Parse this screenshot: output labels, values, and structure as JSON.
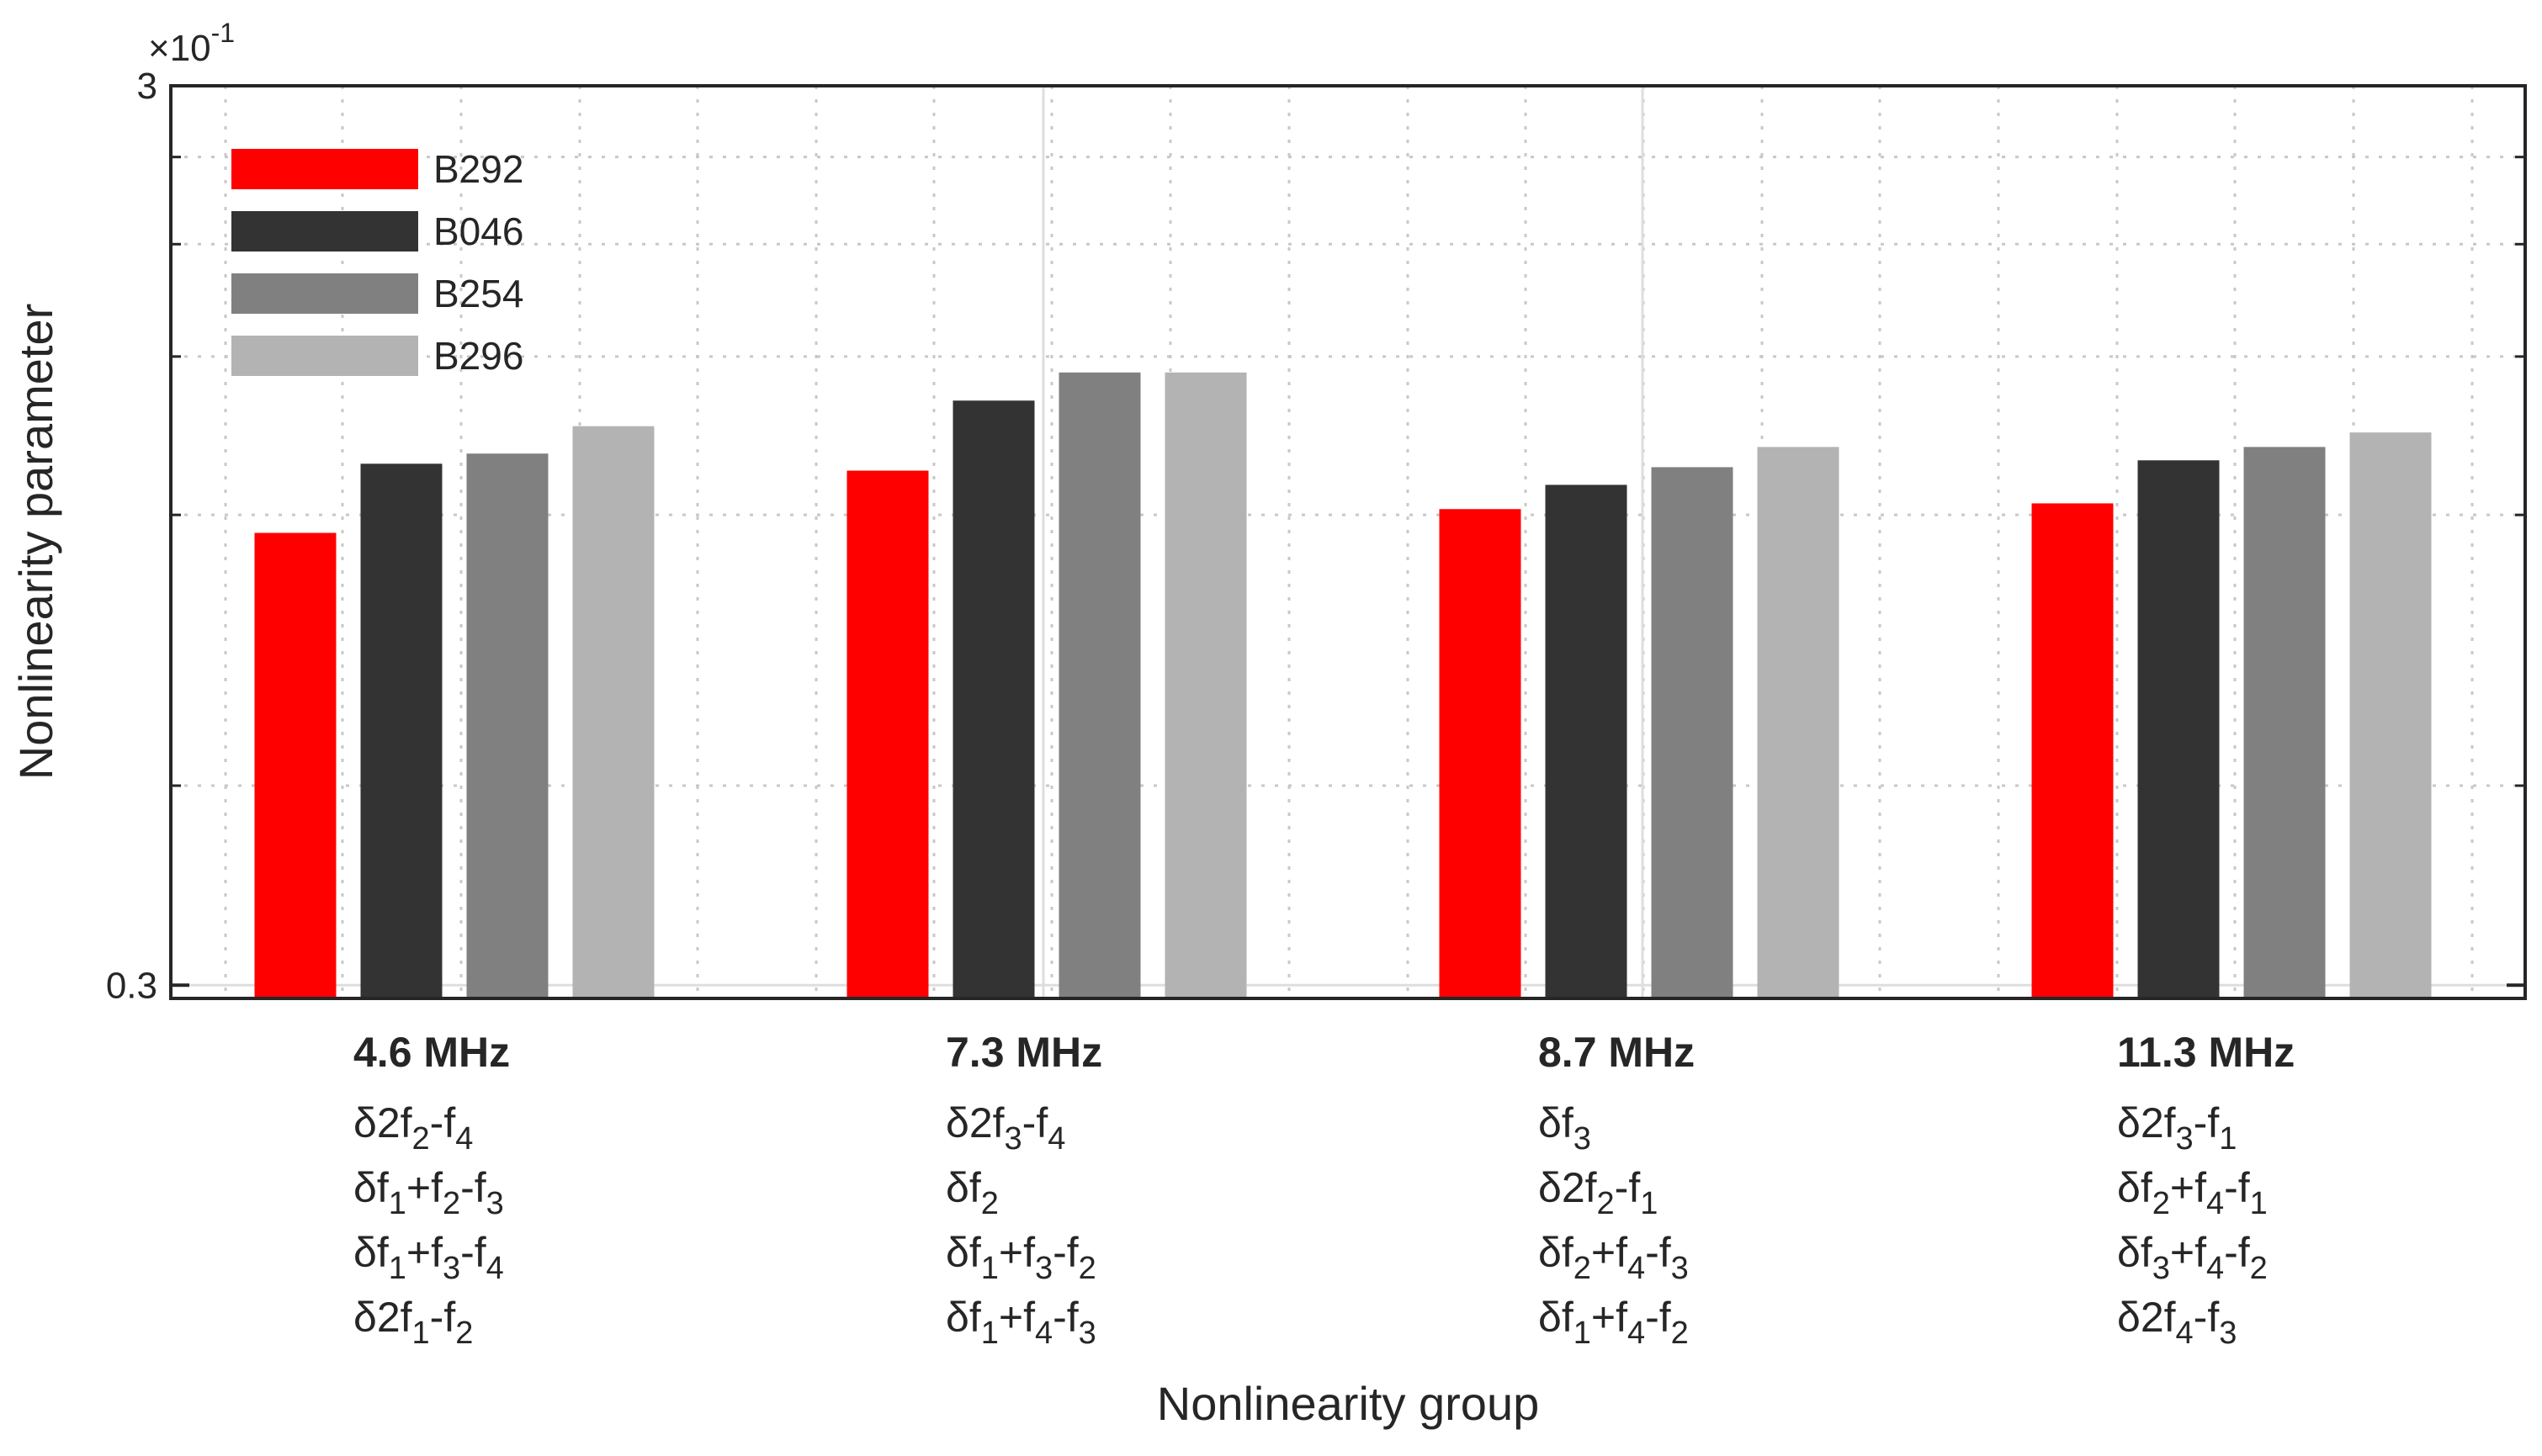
{
  "chart_data": {
    "type": "bar",
    "xlabel": "Nonlinearity group",
    "ylabel": "Nonlinearity parameter",
    "yscale": "log",
    "ylim": [
      0.029,
      0.3
    ],
    "exponent_label": {
      "base": "×10",
      "power": "-1"
    },
    "yticks": [
      {
        "value": 0.3,
        "label": "3"
      },
      {
        "value": 0.03,
        "label": "0.3"
      }
    ],
    "minor_grid": [
      0.05,
      0.1,
      0.15,
      0.2,
      0.25
    ],
    "grid": true,
    "legend_position": "top-left",
    "categories": [
      {
        "title": "4.6 MHz",
        "terms": [
          [
            [
              "δ2f",
              ""
            ],
            [
              "2",
              "sub"
            ],
            [
              "-f",
              ""
            ],
            [
              "4",
              "sub"
            ]
          ],
          [
            [
              "δf",
              ""
            ],
            [
              "1",
              "sub"
            ],
            [
              "+f",
              ""
            ],
            [
              "2",
              "sub"
            ],
            [
              "-f",
              ""
            ],
            [
              "3",
              "sub"
            ]
          ],
          [
            [
              "δf",
              ""
            ],
            [
              "1",
              "sub"
            ],
            [
              "+f",
              ""
            ],
            [
              "3",
              "sub"
            ],
            [
              "-f",
              ""
            ],
            [
              "4",
              "sub"
            ]
          ],
          [
            [
              "δ2f",
              ""
            ],
            [
              "1",
              "sub"
            ],
            [
              "-f",
              ""
            ],
            [
              "2",
              "sub"
            ]
          ]
        ]
      },
      {
        "title": "7.3 MHz",
        "terms": [
          [
            [
              "δ2f",
              ""
            ],
            [
              "3",
              "sub"
            ],
            [
              "-f",
              ""
            ],
            [
              "4",
              "sub"
            ]
          ],
          [
            [
              "δf",
              ""
            ],
            [
              "2",
              "sub"
            ]
          ],
          [
            [
              "δf",
              ""
            ],
            [
              "1",
              "sub"
            ],
            [
              "+f",
              ""
            ],
            [
              "3",
              "sub"
            ],
            [
              "-f",
              ""
            ],
            [
              "2",
              "sub"
            ]
          ],
          [
            [
              "δf",
              ""
            ],
            [
              "1",
              "sub"
            ],
            [
              "+f",
              ""
            ],
            [
              "4",
              "sub"
            ],
            [
              "-f",
              ""
            ],
            [
              "3",
              "sub"
            ]
          ]
        ]
      },
      {
        "title": "8.7 MHz",
        "terms": [
          [
            [
              "δf",
              ""
            ],
            [
              "3",
              "sub"
            ]
          ],
          [
            [
              "δ2f",
              ""
            ],
            [
              "2",
              "sub"
            ],
            [
              "-f",
              ""
            ],
            [
              "1",
              "sub"
            ]
          ],
          [
            [
              "δf",
              ""
            ],
            [
              "2",
              "sub"
            ],
            [
              "+f",
              ""
            ],
            [
              "4",
              "sub"
            ],
            [
              "-f",
              ""
            ],
            [
              "3",
              "sub"
            ]
          ],
          [
            [
              "δf",
              ""
            ],
            [
              "1",
              "sub"
            ],
            [
              "+f",
              ""
            ],
            [
              "4",
              "sub"
            ],
            [
              "-f",
              ""
            ],
            [
              "2",
              "sub"
            ]
          ]
        ]
      },
      {
        "title": "11.3 MHz",
        "terms": [
          [
            [
              "δ2f",
              ""
            ],
            [
              "3",
              "sub"
            ],
            [
              "-f",
              ""
            ],
            [
              "1",
              "sub"
            ]
          ],
          [
            [
              "δf",
              ""
            ],
            [
              "2",
              "sub"
            ],
            [
              "+f",
              ""
            ],
            [
              "4",
              "sub"
            ],
            [
              "-f",
              ""
            ],
            [
              "1",
              "sub"
            ]
          ],
          [
            [
              "δf",
              ""
            ],
            [
              "3",
              "sub"
            ],
            [
              "+f",
              ""
            ],
            [
              "4",
              "sub"
            ],
            [
              "-f",
              ""
            ],
            [
              "2",
              "sub"
            ]
          ],
          [
            [
              "δ2f",
              ""
            ],
            [
              "4",
              "sub"
            ],
            [
              "-f",
              ""
            ],
            [
              "3",
              "sub"
            ]
          ]
        ]
      }
    ],
    "series": [
      {
        "name": "B292",
        "color": "#ff0000",
        "values": [
          0.0955,
          0.112,
          0.1015,
          0.103
        ]
      },
      {
        "name": "B046",
        "color": "#333333",
        "values": [
          0.114,
          0.134,
          0.108,
          0.115
        ]
      },
      {
        "name": "B254",
        "color": "#808080",
        "values": [
          0.117,
          0.144,
          0.113,
          0.119
        ]
      },
      {
        "name": "B296",
        "color": "#b3b3b3",
        "values": [
          0.1255,
          0.144,
          0.119,
          0.1235
        ]
      }
    ]
  }
}
